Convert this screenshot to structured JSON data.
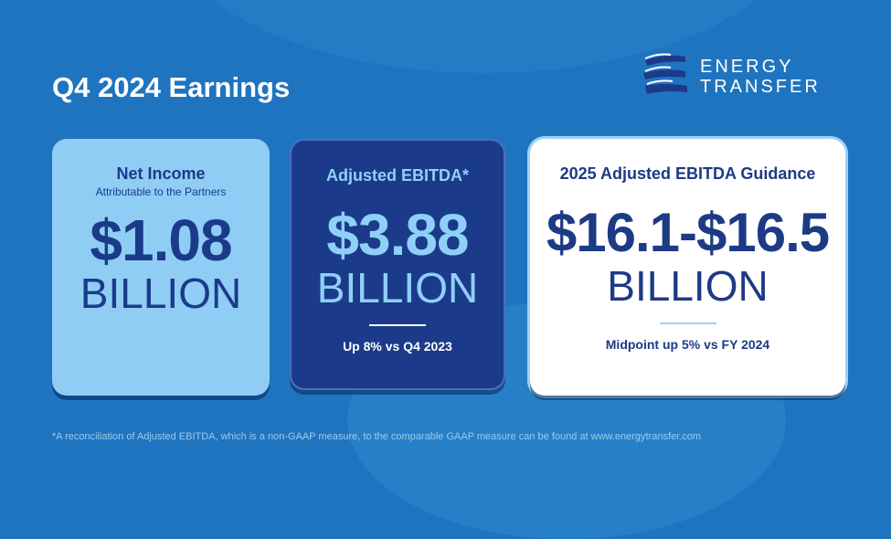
{
  "title": "Q4 2024 Earnings",
  "logo": {
    "line1": "ENERGY",
    "line2": "TRANSFER"
  },
  "cards": [
    {
      "heading": "Net Income",
      "subheading": "Attributable to the Partners",
      "value": "$1.08",
      "unit": "BILLION"
    },
    {
      "heading": "Adjusted EBITDA*",
      "value": "$3.88",
      "unit": "BILLION",
      "note": "Up 8% vs Q4 2023"
    },
    {
      "heading": "2025 Adjusted EBITDA Guidance",
      "value": "$16.1-$16.5",
      "unit": "BILLION",
      "note": "Midpoint up 5% vs FY 2024"
    }
  ],
  "footnote": "*A reconciliation of Adjusted EBITDA, which is a non-GAAP measure, to the comparable GAAP measure can be found at www.energytransfer.com"
}
